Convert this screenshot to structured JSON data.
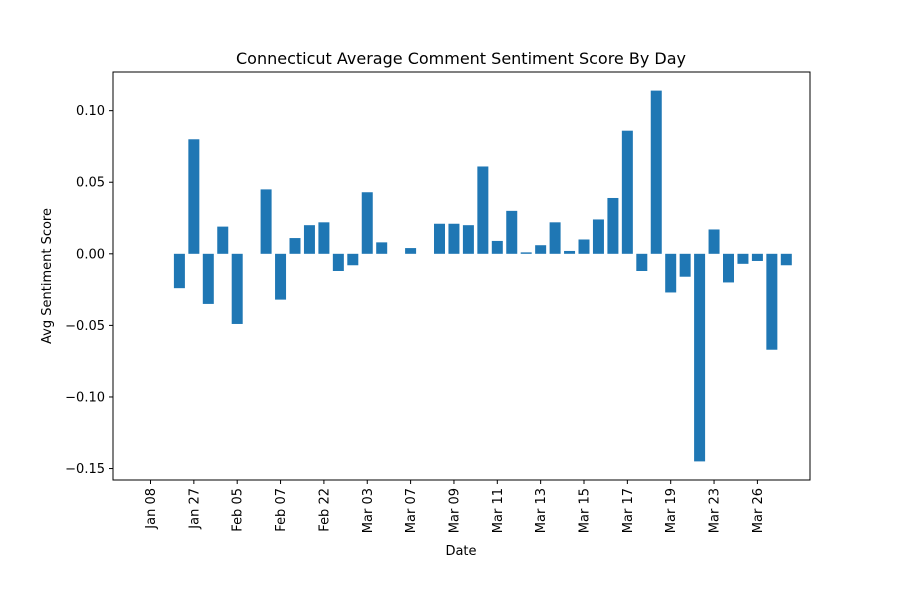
{
  "chart_data": {
    "type": "bar",
    "title": "Connecticut Average Comment Sentiment Score By Day",
    "xlabel": "Date",
    "ylabel": "Avg Sentiment Score",
    "ylim": [
      -0.158,
      0.127
    ],
    "grid": false,
    "color": "#1f77b4",
    "xticks": [
      "Jan 08",
      "Jan 27",
      "Feb 05",
      "Feb 07",
      "Feb 22",
      "Mar 03",
      "Mar 07",
      "Mar 09",
      "Mar 11",
      "Mar 13",
      "Mar 15",
      "Mar 17",
      "Mar 19",
      "Mar 23",
      "Mar 26"
    ],
    "yticks": [
      "0.10",
      "0.05",
      "0.00",
      "−0.05",
      "−0.10",
      "−0.15"
    ],
    "ytick_values": [
      0.1,
      0.05,
      0.0,
      -0.05,
      -0.1,
      -0.15
    ],
    "values": [
      0.0,
      0.0,
      -0.024,
      0.08,
      -0.035,
      0.019,
      -0.049,
      0.0,
      0.045,
      -0.032,
      0.011,
      0.02,
      0.022,
      -0.012,
      -0.008,
      0.043,
      0.008,
      0.0,
      0.004,
      0.0,
      0.021,
      0.021,
      0.02,
      0.061,
      0.009,
      0.03,
      0.001,
      0.006,
      0.022,
      0.002,
      0.01,
      0.024,
      0.039,
      0.086,
      -0.012,
      0.114,
      -0.027,
      -0.016,
      -0.145,
      0.017,
      -0.02,
      -0.007,
      -0.005,
      -0.067,
      -0.008
    ]
  }
}
